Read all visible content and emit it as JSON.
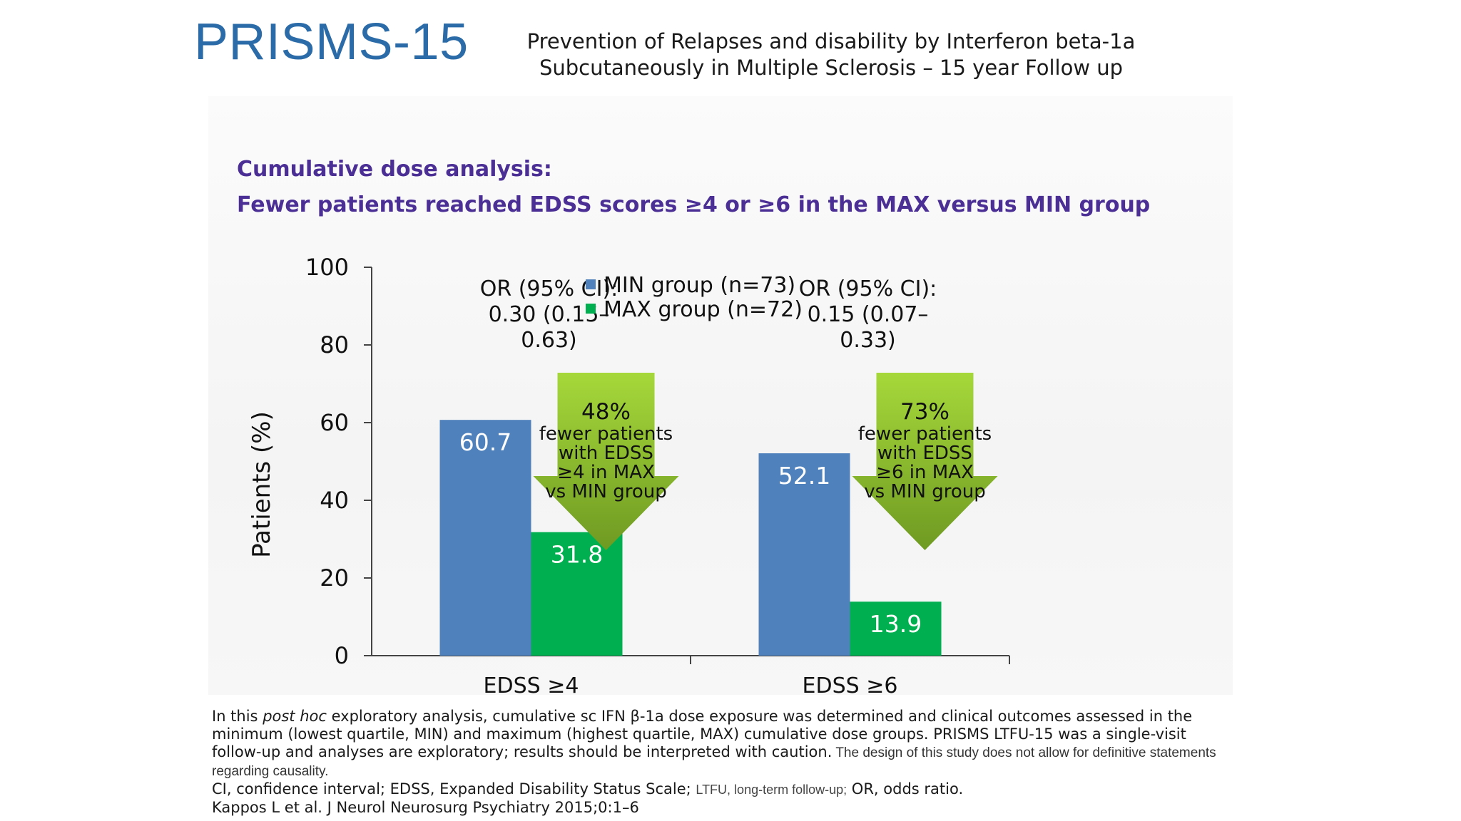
{
  "header": {
    "brand": "PRISMS-15",
    "subtitle_line1": "Prevention of Relapses and disability by Interferon beta-1a",
    "subtitle_line2": "Subcutaneously in Multiple Sclerosis – 15 year Follow up"
  },
  "headline": {
    "line1": "Cumulative dose analysis:",
    "line2": "Fewer patients reached EDSS scores ≥4 or ≥6 in the MAX versus MIN group"
  },
  "chart_data": {
    "type": "bar",
    "title": "",
    "xlabel": "",
    "ylabel": "Patients (%)",
    "ylim": [
      0,
      100
    ],
    "yticks": [
      0,
      20,
      40,
      60,
      80,
      100
    ],
    "categories": [
      "EDSS ≥4",
      "EDSS ≥6"
    ],
    "series": [
      {
        "name": "MIN group (n=73)",
        "values": [
          60.7,
          52.1
        ],
        "labels": [
          "60.7",
          "52.1"
        ],
        "color": "#4f81bd"
      },
      {
        "name": "MAX group (n=72)",
        "values": [
          31.8,
          13.9
        ],
        "labels": [
          "31.8",
          "13.9"
        ],
        "color": "#00b050"
      }
    ],
    "legend_position": "top-center",
    "grid": false,
    "annotations": [
      {
        "or_lines": [
          "OR (95% CI):",
          "0.30 (0.15–",
          "0.63)"
        ],
        "arrow_lines": [
          "48%",
          "fewer patients",
          "with EDSS",
          "≥4 in MAX",
          "vs MIN group"
        ]
      },
      {
        "or_lines": [
          "OR (95% CI):",
          "0.15 (0.07–",
          "0.33)"
        ],
        "arrow_lines": [
          "73%",
          "fewer patients",
          "with EDSS",
          "≥6 in MAX",
          "vs MIN group"
        ]
      }
    ],
    "arrow_color_top": "#a6d83a",
    "arrow_color_bottom": "#6f9a22"
  },
  "footnote": {
    "p1_pre": "In this ",
    "p1_em": "post hoc",
    "p1_post": " exploratory analysis, cumulative sc IFN β-1a dose exposure was determined and clinical outcomes assessed in the minimum (lowest quartile, MIN) and maximum (highest quartile, MAX) cumulative dose groups. PRISMS LTFU-15 was a single-visit follow-up and analyses are exploratory; results should be interpreted with caution.",
    "p1_small": " The design of this study does not allow for definitive statements regarding causality.",
    "p2_pre": "CI, confidence interval; EDSS, Expanded Disability Status Scale; ",
    "p2_small": "LTFU, long-term follow-up;",
    "p2_post": " OR, odds ratio.",
    "p3": "Kappos L et al. J Neurol Neurosurg Psychiatry 2015;0:1–6"
  }
}
